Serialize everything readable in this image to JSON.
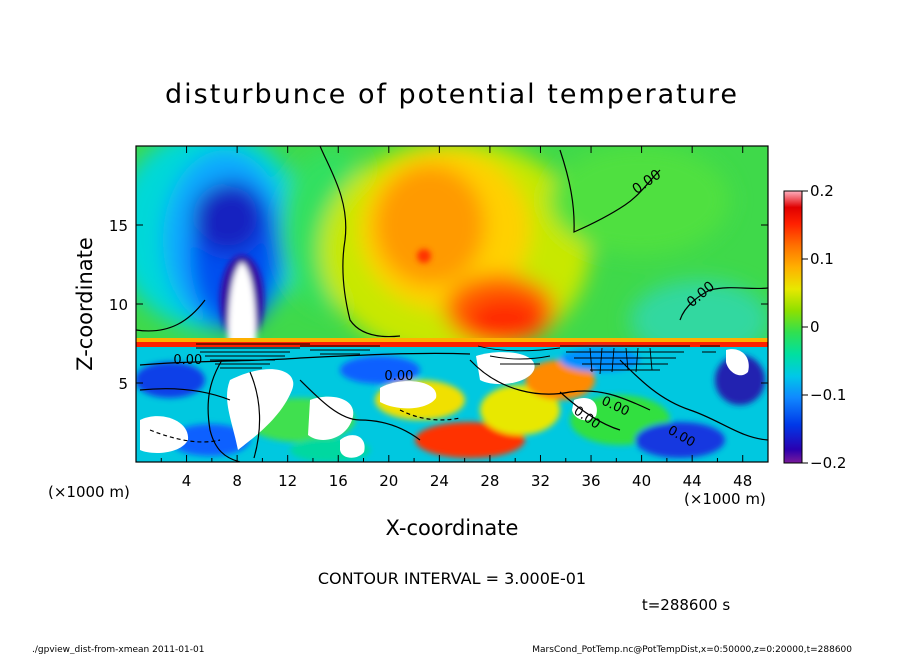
{
  "chart_data": {
    "type": "heatmap",
    "title": "disturbunce of potential temperature",
    "xlabel": "X-coordinate",
    "ylabel": "Z-coordinate",
    "x_unit": "(×1000 m)",
    "y_unit": "(×1000 m)",
    "xlim": [
      0,
      50
    ],
    "ylim": [
      0,
      20
    ],
    "x_ticks": [
      "4",
      "8",
      "12",
      "16",
      "20",
      "24",
      "28",
      "32",
      "36",
      "40",
      "44",
      "48"
    ],
    "y_ticks": [
      "5",
      "10",
      "15"
    ],
    "colorbar": {
      "range": [
        -0.2,
        0.2
      ],
      "tick_labels": [
        "0.2",
        "0.1",
        "0",
        "−0.1",
        "−0.2"
      ]
    },
    "contour_labels": [
      "0.00",
      "0.00",
      "0.00",
      "0.00",
      "0.00",
      "0.00",
      "0.00"
    ],
    "contour_interval_text": "CONTOUR INTERVAL = 3.000E-01",
    "time_text": "t=288600 s",
    "features": [
      {
        "x": 8.5,
        "z": 13.5,
        "value": -0.18
      },
      {
        "x": 8.0,
        "z": 9.0,
        "value": -0.3
      },
      {
        "x": 3.5,
        "z": 18.0,
        "value": -0.1
      },
      {
        "x": 22.5,
        "z": 14.5,
        "value": 0.11
      },
      {
        "x": 23.0,
        "z": 13.0,
        "value": 0.15
      },
      {
        "x": 29.0,
        "z": 9.5,
        "value": 0.17
      },
      {
        "x": 14.0,
        "z": 13.0,
        "value": 0.02
      },
      {
        "x": 40.0,
        "z": 14.0,
        "value": 0.0
      },
      {
        "x": 46.0,
        "z": 11.0,
        "value": -0.02
      }
    ]
  },
  "footer": {
    "left": "./gpview_dist-from-xmean  2011-01-01",
    "right": "MarsCond_PotTemp.nc@PotTempDist,x=0:50000,z=0:20000,t=288600"
  }
}
